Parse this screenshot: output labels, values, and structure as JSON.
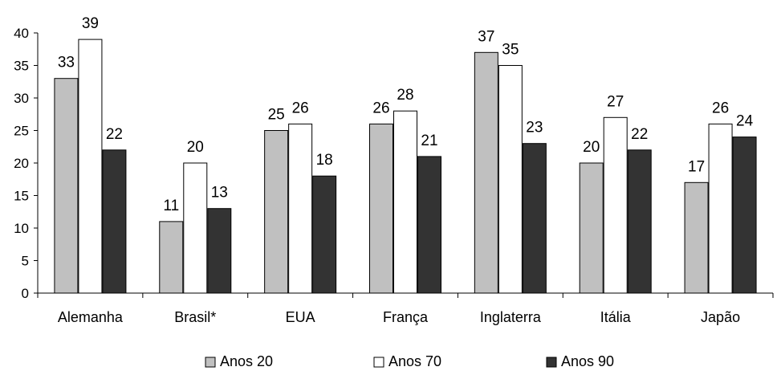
{
  "chart_data": {
    "type": "bar",
    "title": "",
    "xlabel": "",
    "ylabel": "",
    "ylim": [
      0,
      40
    ],
    "ytick_step": 5,
    "yticks": [
      "0",
      "5",
      "10",
      "15",
      "20",
      "25",
      "30",
      "35",
      "40"
    ],
    "grid": false,
    "legend_position": "bottom",
    "categories": [
      "Alemanha",
      "Brasil*",
      "EUA",
      "França",
      "Inglaterra",
      "Itália",
      "Japão"
    ],
    "series": [
      {
        "name": "Anos 20",
        "color": "#c0c0c0",
        "values": [
          33,
          11,
          25,
          26,
          37,
          20,
          17
        ]
      },
      {
        "name": "Anos 70",
        "color": "#ffffff",
        "values": [
          39,
          20,
          26,
          28,
          35,
          27,
          26
        ]
      },
      {
        "name": "Anos 90",
        "color": "#333333",
        "values": [
          22,
          13,
          18,
          21,
          23,
          22,
          24
        ]
      }
    ]
  }
}
